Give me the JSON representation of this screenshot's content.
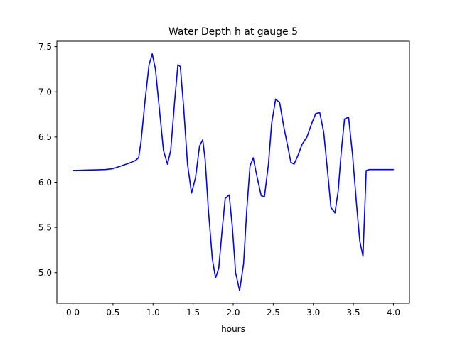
{
  "chart_data": {
    "type": "line",
    "title": "Water Depth h at gauge 5",
    "xlabel": "hours",
    "ylabel": "",
    "xlim": [
      -0.2,
      4.2
    ],
    "ylim": [
      4.66,
      7.56
    ],
    "xticks": [
      0.0,
      0.5,
      1.0,
      1.5,
      2.0,
      2.5,
      3.0,
      3.5,
      4.0
    ],
    "xtick_labels": [
      "0.0",
      "0.5",
      "1.0",
      "1.5",
      "2.0",
      "2.5",
      "3.0",
      "3.5",
      "4.0"
    ],
    "yticks": [
      5.0,
      5.5,
      6.0,
      6.5,
      7.0,
      7.5
    ],
    "ytick_labels": [
      "5.0",
      "5.5",
      "6.0",
      "6.5",
      "7.0",
      "7.5"
    ],
    "grid": false,
    "legend": "none",
    "series": [
      {
        "color": "#0000ff",
        "x": [
          0.0,
          0.2,
          0.4,
          0.5,
          0.6,
          0.7,
          0.78,
          0.82,
          0.85,
          0.9,
          0.95,
          0.99,
          1.03,
          1.08,
          1.13,
          1.18,
          1.22,
          1.27,
          1.31,
          1.34,
          1.38,
          1.43,
          1.48,
          1.53,
          1.58,
          1.62,
          1.65,
          1.69,
          1.74,
          1.78,
          1.82,
          1.86,
          1.9,
          1.95,
          1.99,
          2.03,
          2.08,
          2.13,
          2.17,
          2.21,
          2.25,
          2.3,
          2.35,
          2.39,
          2.44,
          2.48,
          2.53,
          2.58,
          2.63,
          2.68,
          2.72,
          2.76,
          2.81,
          2.86,
          2.92,
          2.98,
          3.03,
          3.08,
          3.13,
          3.18,
          3.22,
          3.27,
          3.31,
          3.35,
          3.39,
          3.44,
          3.49,
          3.54,
          3.58,
          3.62,
          3.66,
          3.7,
          3.74,
          3.78,
          3.81,
          3.85,
          3.89,
          3.93,
          3.97,
          4.0
        ],
        "y": [
          6.13,
          6.135,
          6.14,
          6.15,
          6.18,
          6.21,
          6.24,
          6.27,
          6.45,
          6.9,
          7.3,
          7.42,
          7.25,
          6.8,
          6.35,
          6.2,
          6.35,
          6.9,
          7.3,
          7.28,
          6.85,
          6.2,
          5.88,
          6.05,
          6.4,
          6.47,
          6.25,
          5.7,
          5.15,
          4.94,
          5.05,
          5.45,
          5.82,
          5.86,
          5.5,
          5.0,
          4.8,
          5.1,
          5.7,
          6.18,
          6.27,
          6.05,
          5.85,
          5.84,
          6.2,
          6.65,
          6.92,
          6.88,
          6.62,
          6.4,
          6.22,
          6.2,
          6.3,
          6.42,
          6.5,
          6.65,
          6.76,
          6.77,
          6.55,
          6.1,
          5.72,
          5.66,
          5.9,
          6.35,
          6.7,
          6.72,
          6.3,
          5.75,
          5.35,
          5.18,
          6.13,
          6.14,
          6.14,
          6.14,
          6.14,
          6.14,
          6.14,
          6.14,
          6.14,
          6.14
        ]
      }
    ]
  }
}
